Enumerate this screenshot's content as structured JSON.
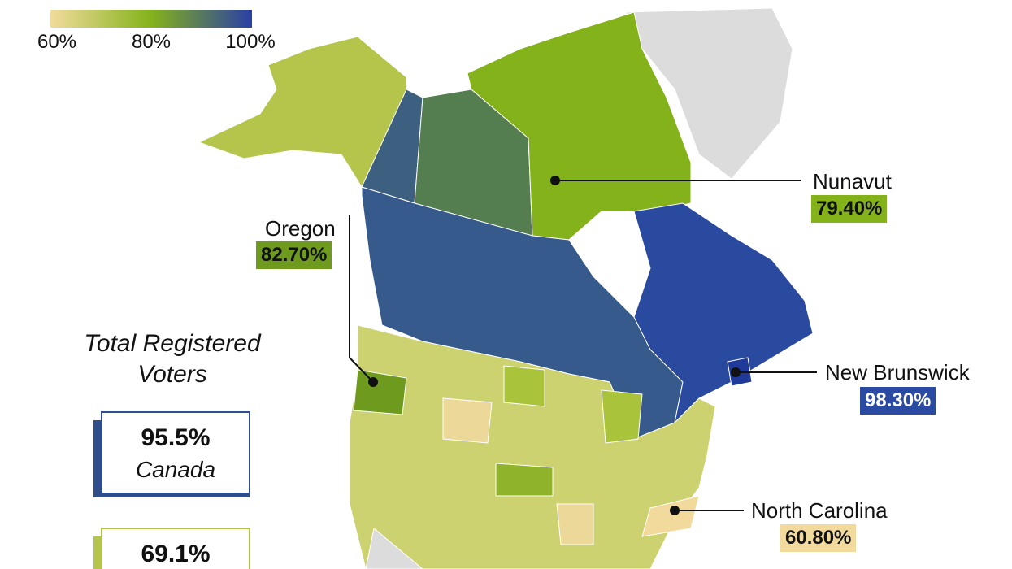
{
  "legend": {
    "ticks": [
      "60%",
      "80%",
      "100%"
    ]
  },
  "callouts": [
    {
      "name": "Nunavut",
      "value": "79.40%"
    },
    {
      "name": "Oregon",
      "value": "82.70%"
    },
    {
      "name": "New Brunswick",
      "value": "98.30%"
    },
    {
      "name": "North Carolina",
      "value": "60.80%"
    }
  ],
  "summary": {
    "title": "Total Registered Voters",
    "cards": [
      {
        "value": "95.5%",
        "label": "Canada"
      },
      {
        "value": "69.1%"
      }
    ]
  }
}
